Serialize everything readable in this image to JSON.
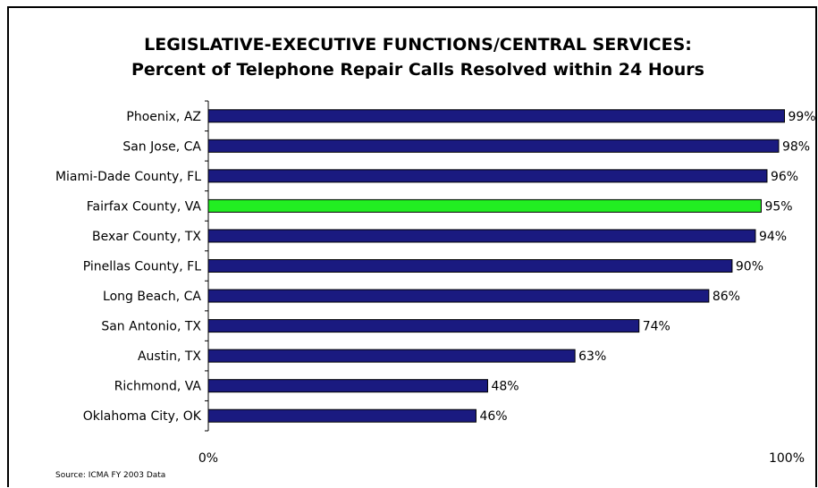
{
  "chart_data": {
    "type": "bar",
    "orientation": "horizontal",
    "title": "LEGISLATIVE-EXECUTIVE FUNCTIONS/CENTRAL SERVICES:",
    "subtitle": "Percent of Telephone Repair Calls Resolved within 24 Hours",
    "categories": [
      "Phoenix, AZ",
      "San Jose, CA",
      "Miami-Dade County, FL",
      "Fairfax County, VA",
      "Bexar County, TX",
      "Pinellas County, FL",
      "Long Beach, CA",
      "San Antonio, TX",
      "Austin, TX",
      "Richmond, VA",
      "Oklahoma City, OK"
    ],
    "values": [
      99,
      98,
      96,
      95,
      94,
      90,
      86,
      74,
      63,
      48,
      46
    ],
    "value_labels": [
      "99%",
      "98%",
      "96%",
      "95%",
      "94%",
      "90%",
      "86%",
      "74%",
      "63%",
      "48%",
      "46%"
    ],
    "xlim": [
      0,
      100
    ],
    "x_tick_labels": [
      "0%",
      "100%"
    ],
    "highlight_category": "Fairfax County, VA",
    "colors": {
      "bar": "#1a1a80",
      "highlight": "#22ee22",
      "bar_stroke": "#000000"
    },
    "grid": false,
    "legend": "none"
  },
  "source": "Source: ICMA  FY 2003 Data"
}
